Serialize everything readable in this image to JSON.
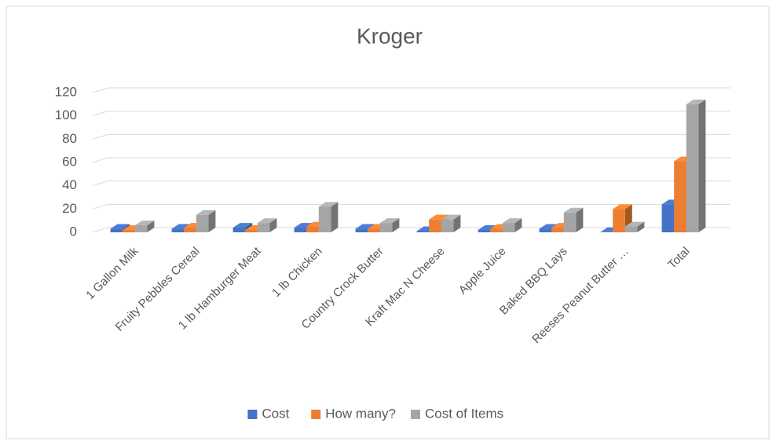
{
  "chart_data": {
    "type": "bar",
    "title": "Kroger",
    "categories": [
      "1 Gallon Milk",
      "Fruity Pebbles Cereal",
      "1 lb Hamburger Meat",
      "1 lb Chicken",
      "Country Crock Butter",
      "Kraft Mac N Cheese",
      "Apple Juice",
      "Baked BBQ Lays",
      "Reeses Peanut Butter …",
      "Total"
    ],
    "series": [
      {
        "name": "Cost",
        "color": "#4472c4",
        "values": [
          3,
          3,
          4,
          4,
          3,
          1,
          2,
          3,
          0.25,
          24
        ]
      },
      {
        "name": "How many?",
        "color": "#ed7d31",
        "values": [
          2,
          4,
          2,
          5,
          3,
          11,
          3,
          4,
          20,
          61
        ]
      },
      {
        "name": "Cost of Items",
        "color": "#a5a5a5",
        "values": [
          6,
          15,
          8,
          22,
          8,
          11,
          8,
          17,
          5,
          110
        ]
      }
    ],
    "ylim": [
      0,
      120
    ],
    "yticks": [
      0,
      20,
      40,
      60,
      80,
      100,
      120
    ],
    "grid": true,
    "legend": "bottom"
  }
}
